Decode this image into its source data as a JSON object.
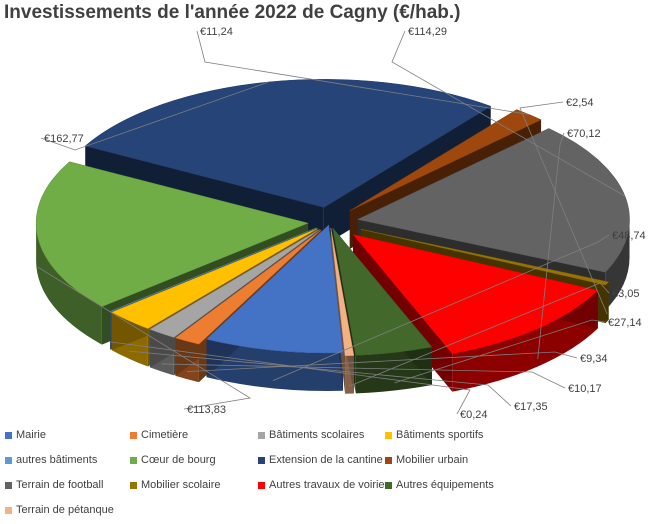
{
  "chart_data": {
    "type": "pie",
    "title": "Investissements de l'année 2022 de Cagny (€/hab.)",
    "slices": [
      {
        "name": "Mairie",
        "value": 48.74,
        "label": "€48,74",
        "color": "#4472C4"
      },
      {
        "name": "Cimetière",
        "value": 9.34,
        "label": "€9,34",
        "color": "#ED7D31"
      },
      {
        "name": "Bâtiments scolaires",
        "value": 10.17,
        "label": "€10,17",
        "color": "#A5A5A5"
      },
      {
        "name": "Bâtiments sportifs",
        "value": 17.35,
        "label": "€17,35",
        "color": "#FFC000"
      },
      {
        "name": "autres bâtiments",
        "value": 0.24,
        "label": "€0,24",
        "color": "#5B9BD5"
      },
      {
        "name": "Cœur de bourg",
        "value": 113.83,
        "label": "€113,83",
        "color": "#70AD47"
      },
      {
        "name": "Extension de la cantine",
        "value": 162.77,
        "label": "€162,77",
        "color": "#264478"
      },
      {
        "name": "Mobilier urbain",
        "value": 11.24,
        "label": "€11,24",
        "color": "#9E480E"
      },
      {
        "name": "Terrain de football",
        "value": 114.29,
        "label": "€114,29",
        "color": "#636363"
      },
      {
        "name": "Mobilier scolaire",
        "value": 2.54,
        "label": "€2,54",
        "color": "#997300"
      },
      {
        "name": "Autres travaux de voirie",
        "value": 70.12,
        "label": "€70,12",
        "color": "#FF0000"
      },
      {
        "name": "Autres équipements",
        "value": 27.14,
        "label": "€27,14",
        "color": "#43682B"
      },
      {
        "name": "Terrain de pétanque",
        "value": 3.05,
        "label": "€3,05",
        "color": "#F4B183"
      }
    ],
    "legend_position": "bottom",
    "style": "3d-exploded"
  }
}
